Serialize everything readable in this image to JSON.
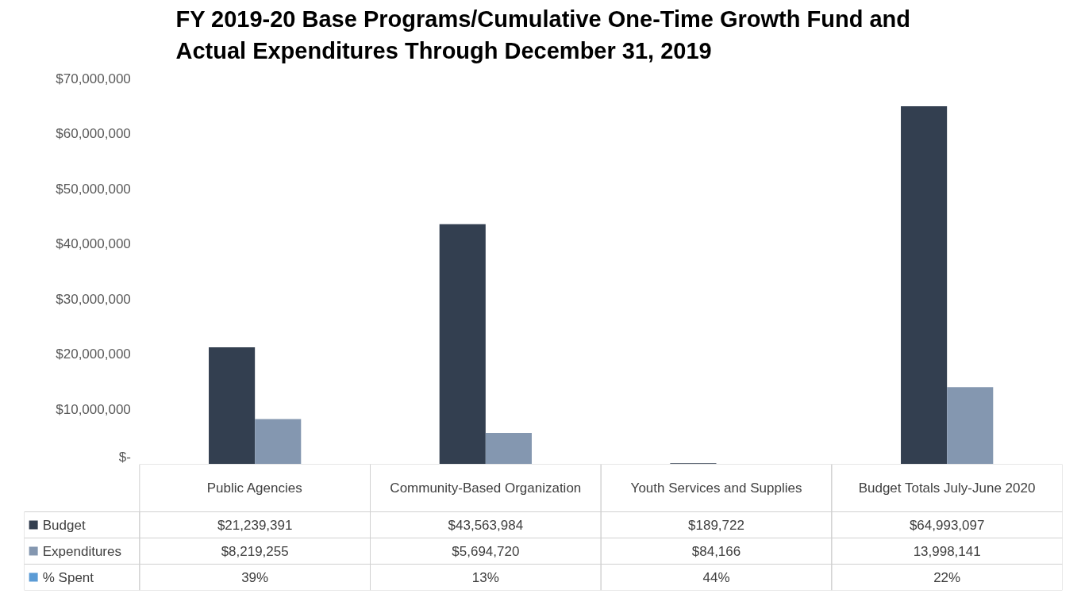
{
  "chart_data": {
    "type": "bar",
    "title": "FY 2019-20 Base Programs/Cumulative One-Time Growth Fund and Actual Expenditures Through December 31, 2019",
    "categories": [
      "Public Agencies",
      "Community-Based Organization",
      "Youth Services and Supplies",
      "Budget Totals July-June 2020"
    ],
    "series": [
      {
        "name": "Budget",
        "color": "#333f50",
        "values": [
          21239391,
          43563984,
          189722,
          64993097
        ],
        "value_labels": [
          "$21,239,391",
          "$43,563,984",
          "$189,722",
          "$64,993,097"
        ]
      },
      {
        "name": "Expenditures",
        "color": "#8497b0",
        "values": [
          8219255,
          5694720,
          84166,
          13998141
        ],
        "value_labels": [
          "$8,219,255",
          "$5,694,720",
          "$84,166",
          "13,998,141"
        ]
      },
      {
        "name": "% Spent",
        "color": "#5b9bd5",
        "values": [
          null,
          null,
          null,
          null
        ],
        "value_labels": [
          "39%",
          "13%",
          "44%",
          "22%"
        ]
      }
    ],
    "ylim": [
      0,
      70000000
    ],
    "yticks": [
      {
        "value": 0,
        "label": "$-"
      },
      {
        "value": 10000000,
        "label": "$10,000,000"
      },
      {
        "value": 20000000,
        "label": "$20,000,000"
      },
      {
        "value": 30000000,
        "label": "$30,000,000"
      },
      {
        "value": 40000000,
        "label": "$40,000,000"
      },
      {
        "value": 50000000,
        "label": "$50,000,000"
      },
      {
        "value": 60000000,
        "label": "$60,000,000"
      },
      {
        "value": 70000000,
        "label": "$70,000,000"
      }
    ],
    "grid": false,
    "legend": "bottom left"
  }
}
